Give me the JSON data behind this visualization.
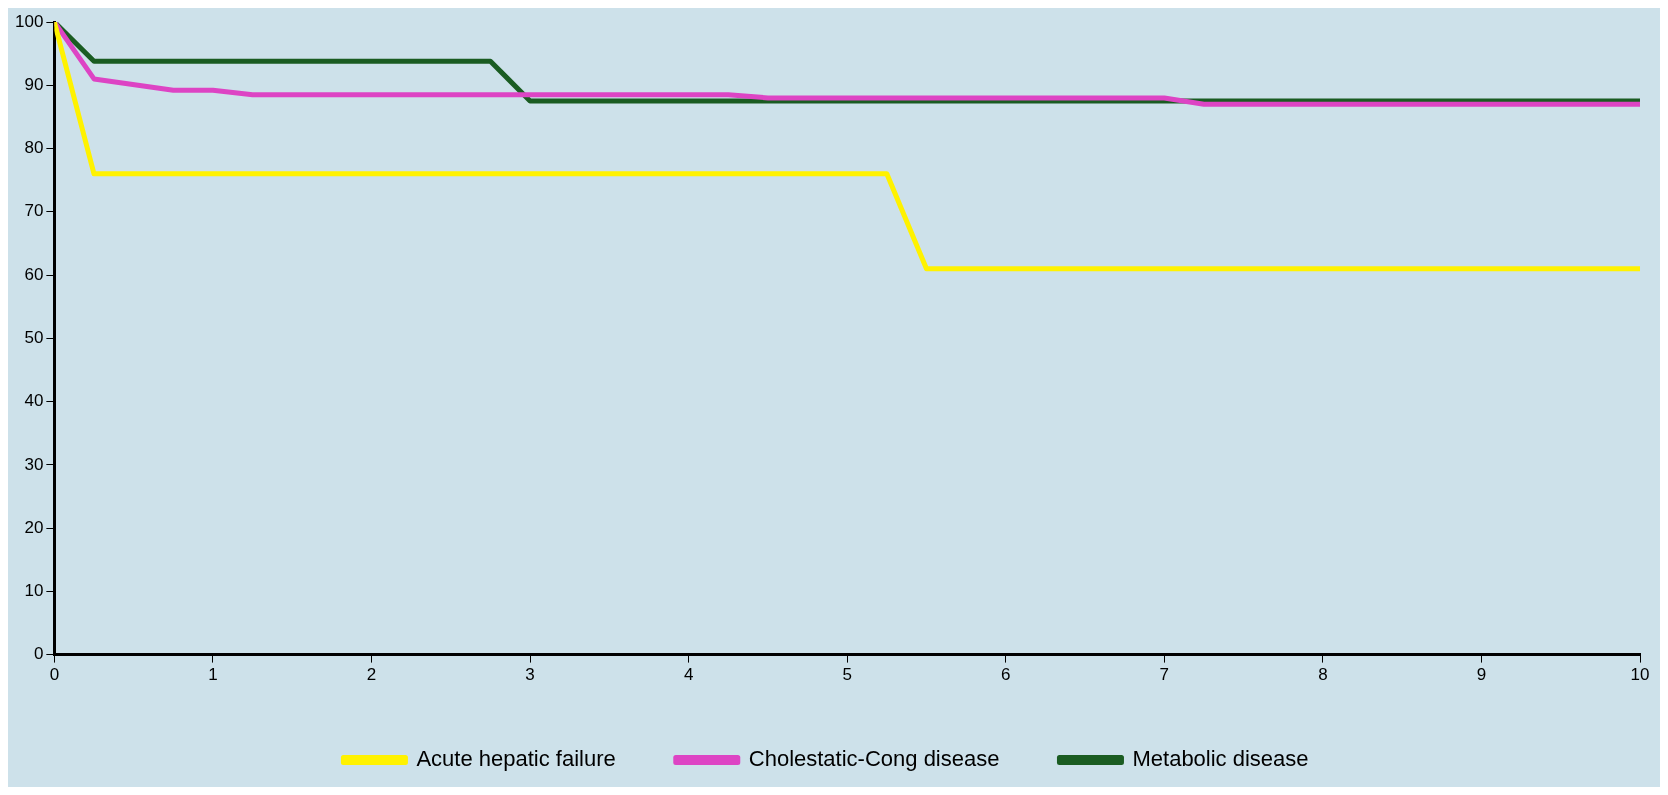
{
  "chart_data": {
    "type": "line",
    "xlim": [
      0,
      10
    ],
    "xticks": [
      0,
      1,
      2,
      3,
      4,
      5,
      6,
      7,
      8,
      9,
      10
    ],
    "ylim": [
      0,
      100
    ],
    "yticks": [
      0,
      10,
      20,
      30,
      40,
      50,
      60,
      70,
      80,
      90,
      100
    ],
    "grid": false,
    "legend": "bottom",
    "marker": "none",
    "line_style": "solid",
    "series": [
      {
        "name": "Acute hepatic failure",
        "color": "#fff200",
        "x": [
          0,
          0.25,
          5.25,
          5.5,
          10
        ],
        "values": [
          100,
          76,
          76,
          61,
          61
        ]
      },
      {
        "name": "Cholestatic-Cong disease",
        "color": "#dd44c4",
        "x": [
          0,
          0.25,
          0.75,
          1,
          1.25,
          4.25,
          4.5,
          7,
          7.25,
          10
        ],
        "values": [
          100,
          91,
          89.2,
          89.2,
          88.5,
          88.5,
          88,
          88,
          87,
          87
        ]
      },
      {
        "name": "Metabolic disease",
        "color": "#1a5c22",
        "x": [
          0,
          0.25,
          2.75,
          3,
          10
        ],
        "values": [
          100,
          93.8,
          93.8,
          87.5,
          87.5
        ]
      }
    ]
  }
}
